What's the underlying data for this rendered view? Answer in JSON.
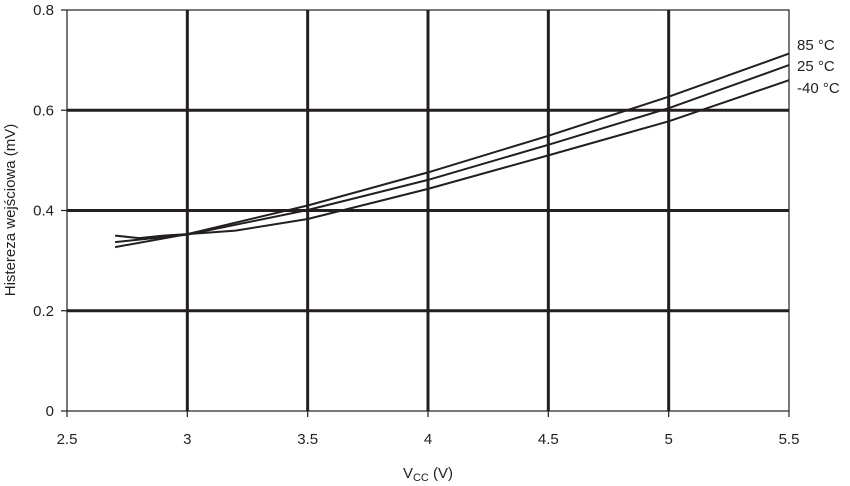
{
  "chart_data": {
    "type": "line",
    "title": "",
    "xlabel": {
      "main": "V",
      "sub": "CC",
      "unit": " (V)"
    },
    "ylabel": "Histereza wejściowa (mV)",
    "xlim": [
      2.5,
      5.5
    ],
    "ylim": [
      0,
      0.8
    ],
    "xticks": [
      2.5,
      3,
      3.5,
      4,
      4.5,
      5,
      5.5
    ],
    "xtick_labels": [
      "2.5",
      "3",
      "3.5",
      "4",
      "4.5",
      "5",
      "5.5"
    ],
    "yticks": [
      0,
      0.2,
      0.4,
      0.6,
      0.8
    ],
    "ytick_labels": [
      "0",
      "0.2",
      "0.4",
      "0.6",
      "0.8"
    ],
    "grid": true,
    "legend_placement": "right, at line ends",
    "series": [
      {
        "name": "85 °C",
        "x": [
          2.7,
          3.0,
          3.5,
          4.0,
          4.5,
          5.0,
          5.5
        ],
        "y": [
          0.327,
          0.353,
          0.41,
          0.476,
          0.549,
          0.627,
          0.713
        ]
      },
      {
        "name": "25 °C",
        "x": [
          2.7,
          3.0,
          3.5,
          4.0,
          4.5,
          5.0,
          5.5
        ],
        "y": [
          0.337,
          0.352,
          0.401,
          0.461,
          0.531,
          0.604,
          0.69
        ]
      },
      {
        "name": "-40 °C",
        "x": [
          2.7,
          2.8,
          2.9,
          3.0,
          3.2,
          3.5,
          4.0,
          4.5,
          5.0,
          5.5
        ],
        "y": [
          0.35,
          0.345,
          0.35,
          0.353,
          0.36,
          0.383,
          0.443,
          0.51,
          0.578,
          0.66
        ]
      }
    ]
  }
}
